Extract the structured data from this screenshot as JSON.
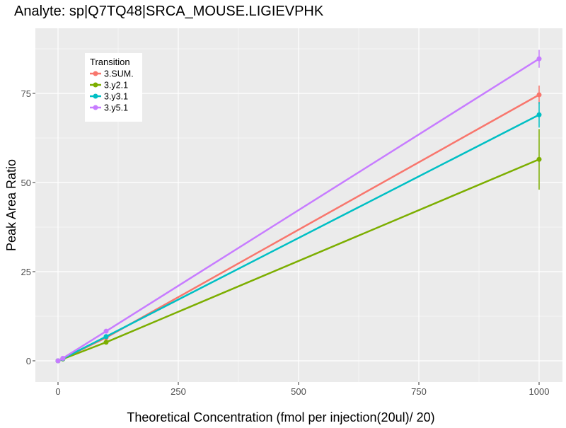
{
  "chart_data": {
    "type": "line",
    "title": "Analyte: sp|Q7TQ48|SRCA_MOUSE.LIGIEVPHK",
    "xlabel": "Theoretical Concentration (fmol per injection(20ul)/ 20)",
    "ylabel": "Peak Area Ratio",
    "xlim": [
      -45,
      1050
    ],
    "ylim": [
      -5,
      92
    ],
    "xticks": [
      0,
      250,
      500,
      750,
      1000
    ],
    "yticks": [
      0,
      25,
      50,
      75
    ],
    "legend": {
      "title": "Transition",
      "placement": "top-left"
    },
    "x": [
      0,
      10,
      100,
      1000
    ],
    "series": [
      {
        "name": "3.SUM.",
        "color": "#F8766D",
        "values": [
          0,
          0.6,
          6.5,
          74.6
        ],
        "err": [
          0,
          0,
          0.5,
          2.6
        ]
      },
      {
        "name": "3.y2.1",
        "color": "#7CAE00",
        "values": [
          0,
          0.5,
          5.2,
          56.5
        ],
        "err": [
          0,
          0,
          0.4,
          8.5
        ]
      },
      {
        "name": "3.y3.1",
        "color": "#00BFC4",
        "values": [
          0,
          0.6,
          6.8,
          69.0
        ],
        "err": [
          0,
          0,
          0.5,
          3.6
        ]
      },
      {
        "name": "3.y5.1",
        "color": "#C77CFF",
        "values": [
          0,
          0.7,
          8.3,
          84.7
        ],
        "err": [
          0,
          0,
          0.5,
          2.5
        ]
      }
    ]
  }
}
